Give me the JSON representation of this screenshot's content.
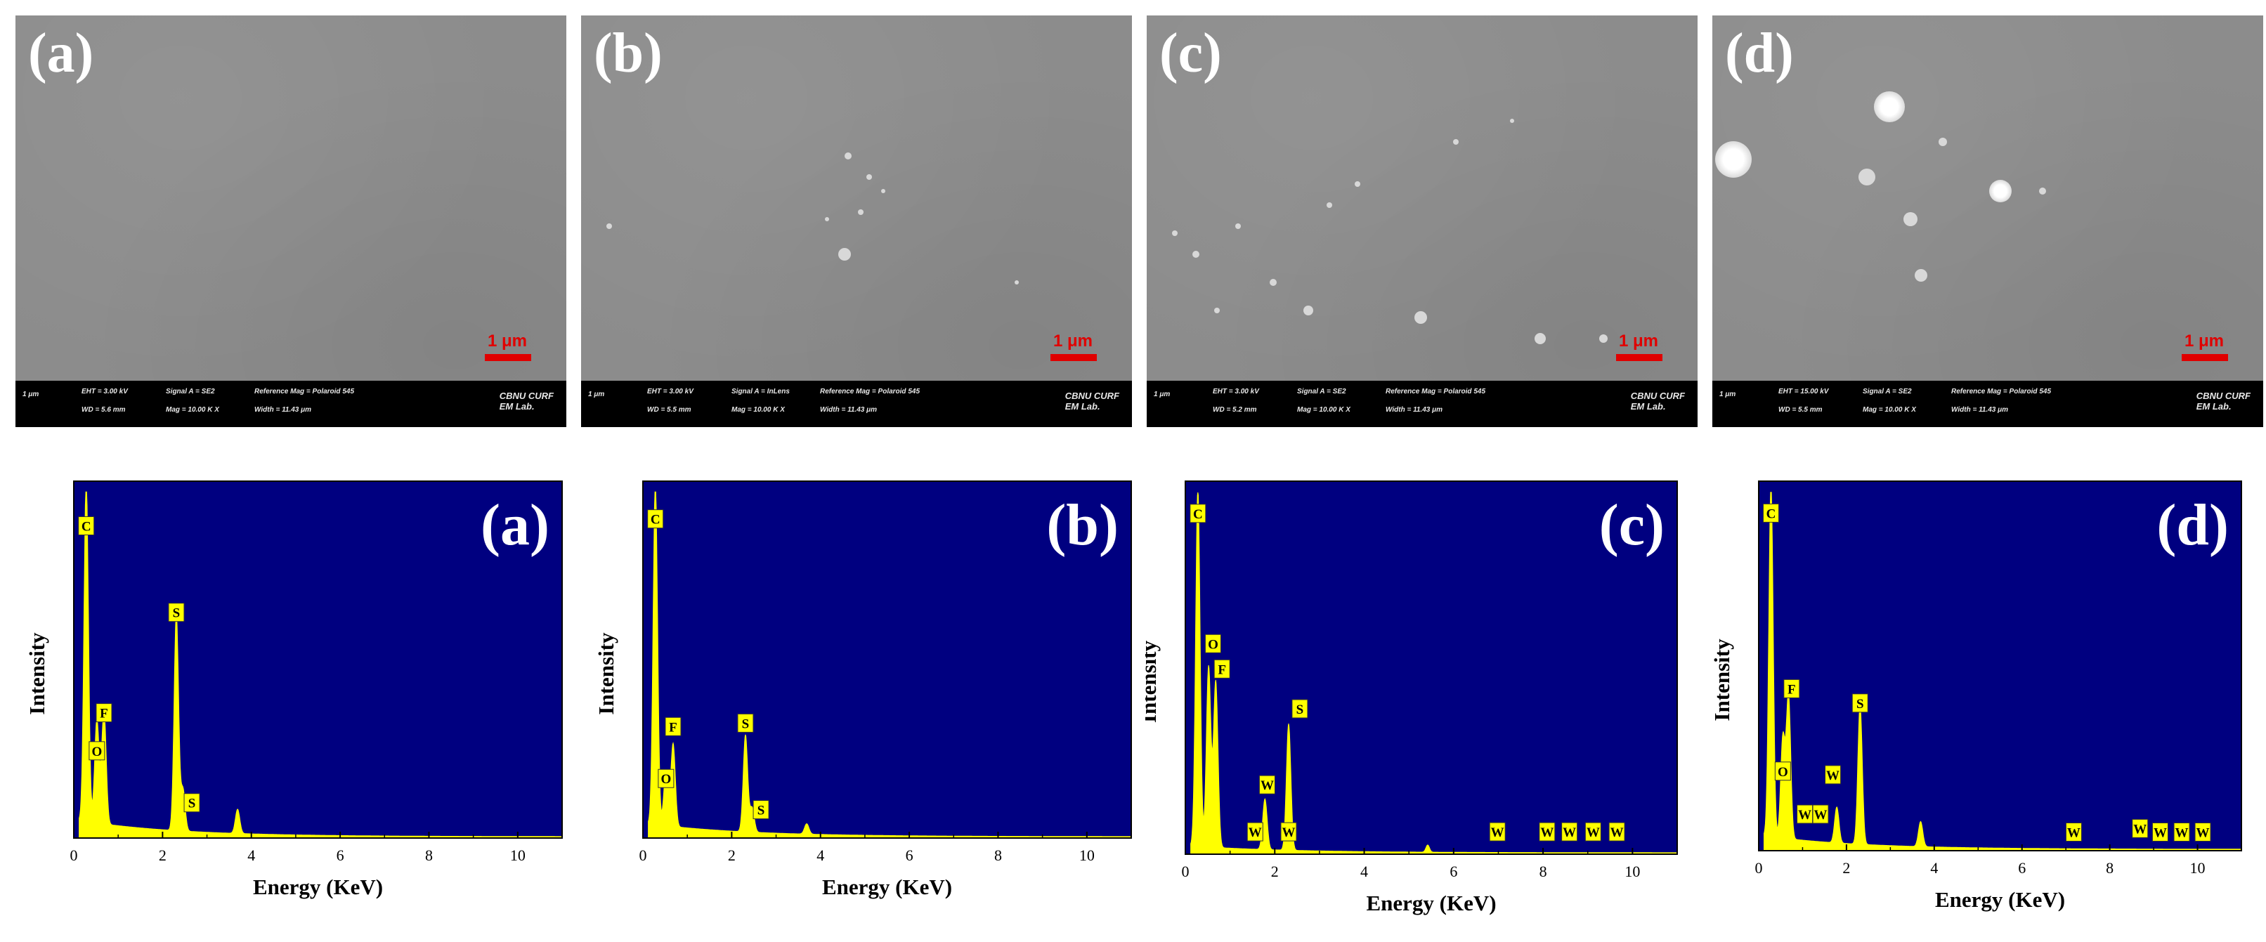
{
  "colors": {
    "eds_bg": "#000080",
    "spectrum": "#ffff00",
    "scale_red": "#e00000",
    "sem_gray": "#8c8c8c"
  },
  "sem_panels": [
    {
      "label": "(a)",
      "scale": "1 μm",
      "info": {
        "micron": "1 μm",
        "eht": "EHT = 3.00 kV",
        "wd": "WD = 5.6 mm",
        "signal": "Signal A = SE2",
        "mag": "Mag = 10.00 K X",
        "ref": "Reference Mag = Polaroid 545",
        "width": "Width = 11.43 μm",
        "lab1": "CBNU CURF",
        "lab2": "EM Lab."
      }
    },
    {
      "label": "(b)",
      "scale": "1 μm",
      "info": {
        "micron": "1 μm",
        "eht": "EHT = 3.00 kV",
        "wd": "WD = 5.5 mm",
        "signal": "Signal A = InLens",
        "mag": "Mag = 10.00 K X",
        "ref": "Reference Mag = Polaroid 545",
        "width": "Width = 11.43 μm",
        "lab1": "CBNU CURF",
        "lab2": "EM Lab."
      }
    },
    {
      "label": "(c)",
      "scale": "1 μm",
      "info": {
        "micron": "1 μm",
        "eht": "EHT = 3.00 kV",
        "wd": "WD = 5.2 mm",
        "signal": "Signal A = SE2",
        "mag": "Mag = 10.00 K X",
        "ref": "Reference Mag = Polaroid 545",
        "width": "Width = 11.43 μm",
        "lab1": "CBNU CURF",
        "lab2": "EM Lab."
      }
    },
    {
      "label": "(d)",
      "scale": "1 μm",
      "info": {
        "micron": "1 μm",
        "eht": "EHT = 15.00 kV",
        "wd": "WD = 5.5 mm",
        "signal": "Signal A = SE2",
        "mag": "Mag = 10.00 K X",
        "ref": "Reference Mag = Polaroid 545",
        "width": "Width = 11.43 μm",
        "lab1": "CBNU CURF",
        "lab2": "EM Lab."
      }
    }
  ],
  "chart_data": [
    {
      "type": "line",
      "title": "(a)",
      "xlabel": "Energy (KeV)",
      "ylabel": "Intensity",
      "xlim": [
        0,
        11
      ],
      "xticks": [
        0,
        2,
        4,
        6,
        8,
        10
      ],
      "peaks": [
        {
          "x": 0.28,
          "h": 0.99,
          "w": 0.05
        },
        {
          "x": 0.52,
          "h": 0.3,
          "w": 0.05
        },
        {
          "x": 0.68,
          "h": 0.33,
          "w": 0.05
        },
        {
          "x": 2.31,
          "h": 0.63,
          "w": 0.05
        },
        {
          "x": 2.46,
          "h": 0.12,
          "w": 0.05
        },
        {
          "x": 3.69,
          "h": 0.07,
          "w": 0.05
        }
      ],
      "background": 0.05,
      "element_labels": [
        {
          "text": "C",
          "x": 0.28,
          "y": 0.9
        },
        {
          "text": "F",
          "x": 0.68,
          "y": 0.36
        },
        {
          "text": "O",
          "x": 0.52,
          "y": 0.25
        },
        {
          "text": "S",
          "x": 2.31,
          "y": 0.65
        },
        {
          "text": "S",
          "x": 2.66,
          "y": 0.1
        }
      ]
    },
    {
      "type": "line",
      "title": "(b)",
      "xlabel": "Energy (KeV)",
      "ylabel": "Intensity",
      "xlim": [
        0,
        11
      ],
      "xticks": [
        0,
        2,
        4,
        6,
        8,
        10
      ],
      "peaks": [
        {
          "x": 0.28,
          "h": 0.99,
          "w": 0.05
        },
        {
          "x": 0.52,
          "h": 0.16,
          "w": 0.05
        },
        {
          "x": 0.68,
          "h": 0.24,
          "w": 0.05
        },
        {
          "x": 2.31,
          "h": 0.28,
          "w": 0.05
        },
        {
          "x": 2.46,
          "h": 0.07,
          "w": 0.05
        },
        {
          "x": 3.69,
          "h": 0.03,
          "w": 0.05
        }
      ],
      "background": 0.04,
      "element_labels": [
        {
          "text": "C",
          "x": 0.28,
          "y": 0.92
        },
        {
          "text": "F",
          "x": 0.68,
          "y": 0.32
        },
        {
          "text": "O",
          "x": 0.52,
          "y": 0.17
        },
        {
          "text": "S",
          "x": 2.31,
          "y": 0.33
        },
        {
          "text": "S",
          "x": 2.66,
          "y": 0.08
        }
      ]
    },
    {
      "type": "line",
      "title": "(c)",
      "xlabel": "Energy (KeV)",
      "ylabel": "Intensity",
      "xlim": [
        0,
        11
      ],
      "xticks": [
        0,
        2,
        4,
        6,
        8,
        10
      ],
      "peaks": [
        {
          "x": 0.28,
          "h": 0.99,
          "w": 0.05
        },
        {
          "x": 0.52,
          "h": 0.5,
          "w": 0.05
        },
        {
          "x": 0.68,
          "h": 0.46,
          "w": 0.05
        },
        {
          "x": 1.78,
          "h": 0.14,
          "w": 0.05
        },
        {
          "x": 2.31,
          "h": 0.35,
          "w": 0.05
        },
        {
          "x": 5.42,
          "h": 0.02,
          "w": 0.04
        }
      ],
      "background": 0.02,
      "element_labels": [
        {
          "text": "C",
          "x": 0.28,
          "y": 0.94
        },
        {
          "text": "O",
          "x": 0.62,
          "y": 0.58
        },
        {
          "text": "F",
          "x": 0.82,
          "y": 0.51
        },
        {
          "text": "S",
          "x": 2.56,
          "y": 0.4
        },
        {
          "text": "W",
          "x": 1.83,
          "y": 0.19
        },
        {
          "text": "W",
          "x": 1.56,
          "y": 0.06
        },
        {
          "text": "W",
          "x": 2.31,
          "y": 0.06
        },
        {
          "text": "W",
          "x": 6.98,
          "y": 0.06
        },
        {
          "text": "W",
          "x": 8.09,
          "y": 0.06
        },
        {
          "text": "W",
          "x": 8.59,
          "y": 0.06
        },
        {
          "text": "W",
          "x": 9.12,
          "y": 0.06
        },
        {
          "text": "W",
          "x": 9.65,
          "y": 0.06
        }
      ]
    },
    {
      "type": "line",
      "title": "(d)",
      "xlabel": "Energy (KeV)",
      "ylabel": "Intensity",
      "xlim": [
        0,
        11
      ],
      "xticks": [
        0,
        2,
        4,
        6,
        8,
        10
      ],
      "peaks": [
        {
          "x": 0.28,
          "h": 0.99,
          "w": 0.05
        },
        {
          "x": 0.55,
          "h": 0.28,
          "w": 0.05
        },
        {
          "x": 0.68,
          "h": 0.4,
          "w": 0.05
        },
        {
          "x": 1.78,
          "h": 0.1,
          "w": 0.05
        },
        {
          "x": 2.31,
          "h": 0.39,
          "w": 0.05
        },
        {
          "x": 3.69,
          "h": 0.07,
          "w": 0.05
        }
      ],
      "background": 0.04,
      "element_labels": [
        {
          "text": "C",
          "x": 0.28,
          "y": 0.94
        },
        {
          "text": "F",
          "x": 0.75,
          "y": 0.45
        },
        {
          "text": "O",
          "x": 0.55,
          "y": 0.22
        },
        {
          "text": "S",
          "x": 2.31,
          "y": 0.41
        },
        {
          "text": "W",
          "x": 1.69,
          "y": 0.21
        },
        {
          "text": "W",
          "x": 1.05,
          "y": 0.1
        },
        {
          "text": "W",
          "x": 1.41,
          "y": 0.1
        },
        {
          "text": "W",
          "x": 7.18,
          "y": 0.05
        },
        {
          "text": "W",
          "x": 8.69,
          "y": 0.06
        },
        {
          "text": "W",
          "x": 9.15,
          "y": 0.05
        },
        {
          "text": "W",
          "x": 9.64,
          "y": 0.05
        },
        {
          "text": "W",
          "x": 10.12,
          "y": 0.05
        }
      ]
    }
  ]
}
